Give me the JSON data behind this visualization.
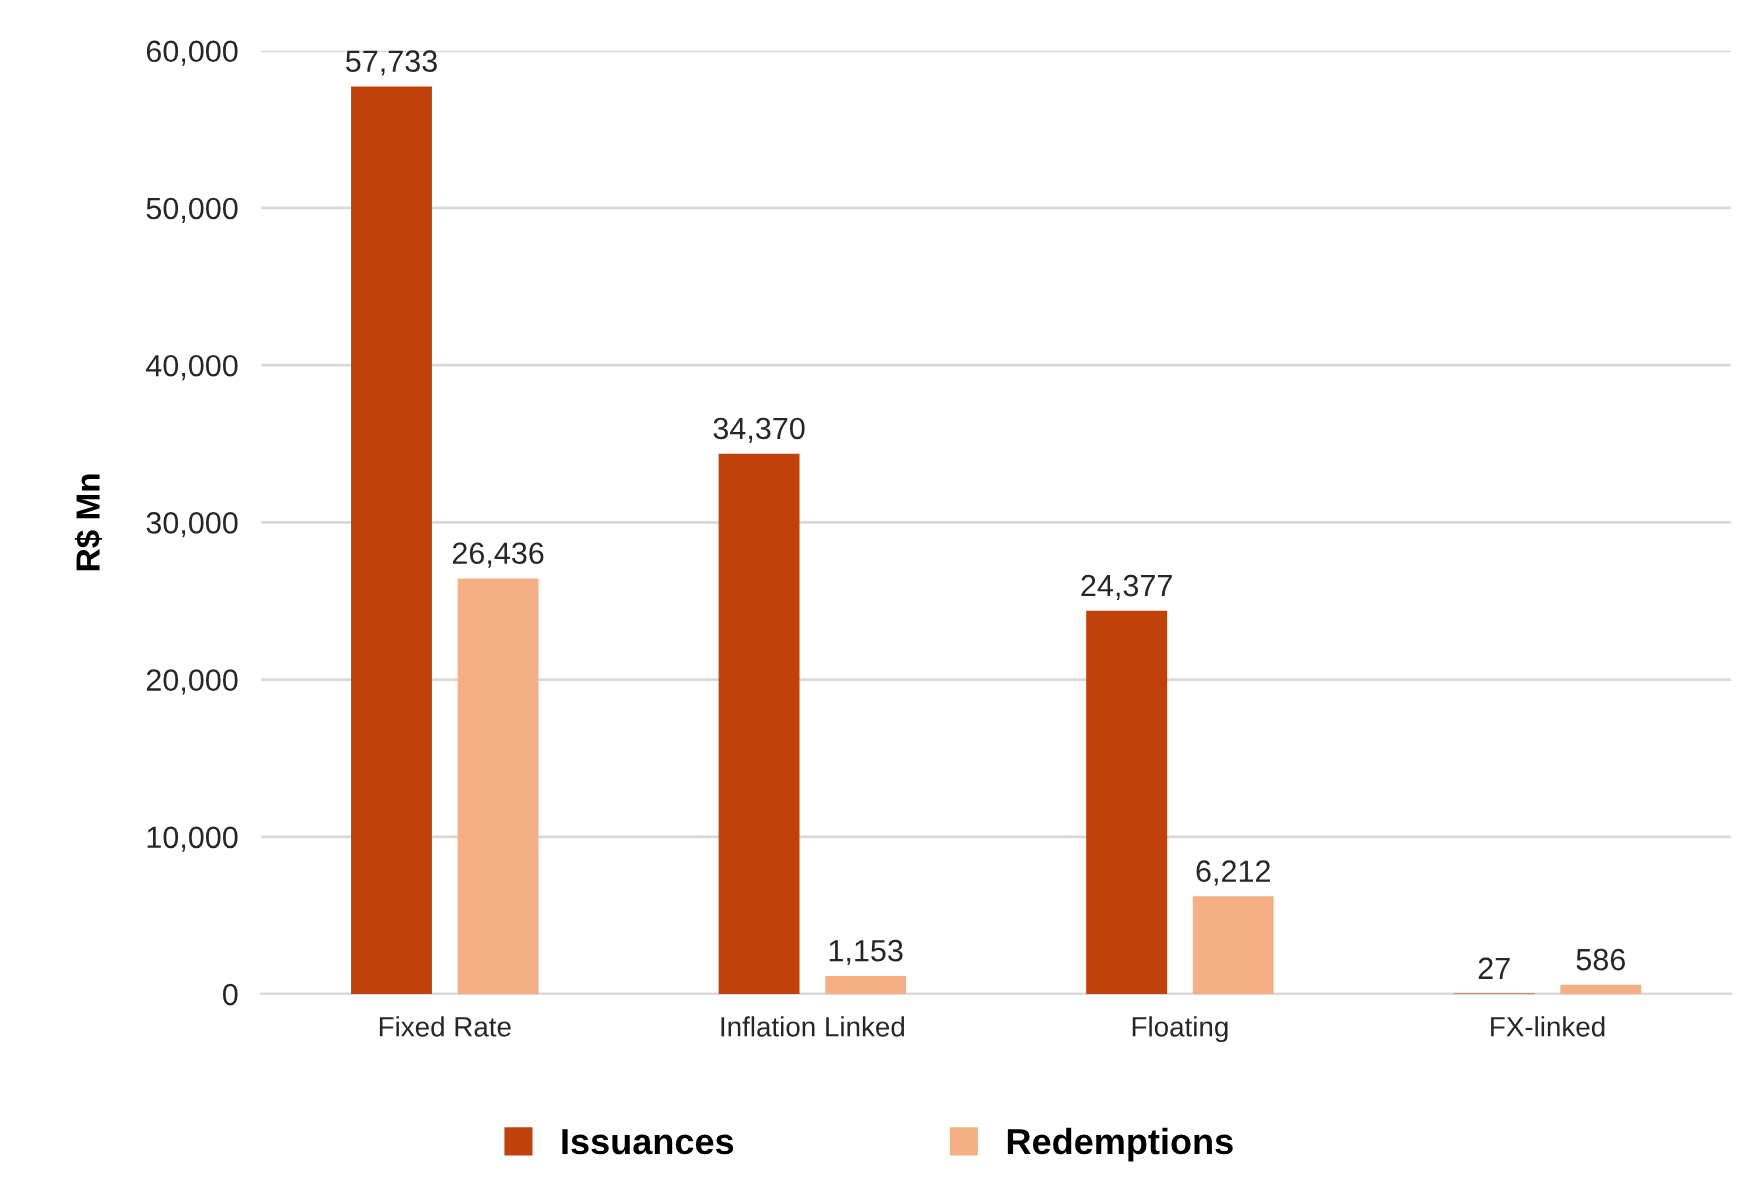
{
  "chart_data": {
    "type": "bar",
    "ylabel": "R$ Mn",
    "categories": [
      "Fixed Rate",
      "Inflation Linked",
      "Floating",
      "FX-linked"
    ],
    "series": [
      {
        "name": "Issuances",
        "color": "#c0410c",
        "values": [
          57733,
          34370,
          24377,
          27
        ],
        "value_labels": [
          "57,733",
          "34,370",
          "24,377",
          "27"
        ]
      },
      {
        "name": "Redemptions",
        "color": "#f4b084",
        "values": [
          26436,
          1153,
          6212,
          586
        ],
        "value_labels": [
          "26,436",
          "1,153",
          "6,212",
          "586"
        ]
      }
    ],
    "ylim": [
      0,
      60000
    ],
    "yticks": [
      {
        "value": 0,
        "label": "0"
      },
      {
        "value": 10000,
        "label": "10,000"
      },
      {
        "value": 20000,
        "label": "20,000"
      },
      {
        "value": 30000,
        "label": "30,000"
      },
      {
        "value": 40000,
        "label": "40,000"
      },
      {
        "value": 50000,
        "label": "50,000"
      },
      {
        "value": 60000,
        "label": "60,000"
      }
    ],
    "grid": "y",
    "legend": "bottom"
  }
}
